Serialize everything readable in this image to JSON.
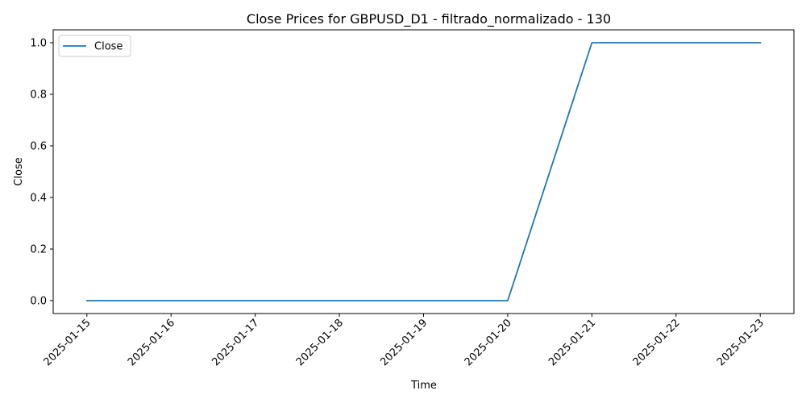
{
  "chart_data": {
    "type": "line",
    "title": "Close Prices for GBPUSD_D1 - filtrado_normalizado - 130",
    "xlabel": "Time",
    "ylabel": "Close",
    "x": [
      "2025-01-15",
      "2025-01-16",
      "2025-01-17",
      "2025-01-18",
      "2025-01-19",
      "2025-01-20",
      "2025-01-21",
      "2025-01-22",
      "2025-01-23"
    ],
    "series": [
      {
        "name": "Close",
        "color": "#1f77b4",
        "points": [
          {
            "x": "2025-01-15",
            "y": 0.0
          },
          {
            "x": "2025-01-16",
            "y": 0.0
          },
          {
            "x": "2025-01-17",
            "y": 0.0
          },
          {
            "x": "2025-01-20",
            "y": 0.0
          },
          {
            "x": "2025-01-21",
            "y": 1.0
          },
          {
            "x": "2025-01-22",
            "y": 1.0
          },
          {
            "x": "2025-01-23",
            "y": 1.0
          }
        ]
      }
    ],
    "x_ticks": [
      "2025-01-15",
      "2025-01-16",
      "2025-01-17",
      "2025-01-18",
      "2025-01-19",
      "2025-01-20",
      "2025-01-21",
      "2025-01-22",
      "2025-01-23"
    ],
    "y_ticks": [
      "0.0",
      "0.2",
      "0.4",
      "0.6",
      "0.8",
      "1.0"
    ],
    "ylim": [
      -0.05,
      1.05
    ],
    "grid": false,
    "legend_position": "upper-left"
  }
}
